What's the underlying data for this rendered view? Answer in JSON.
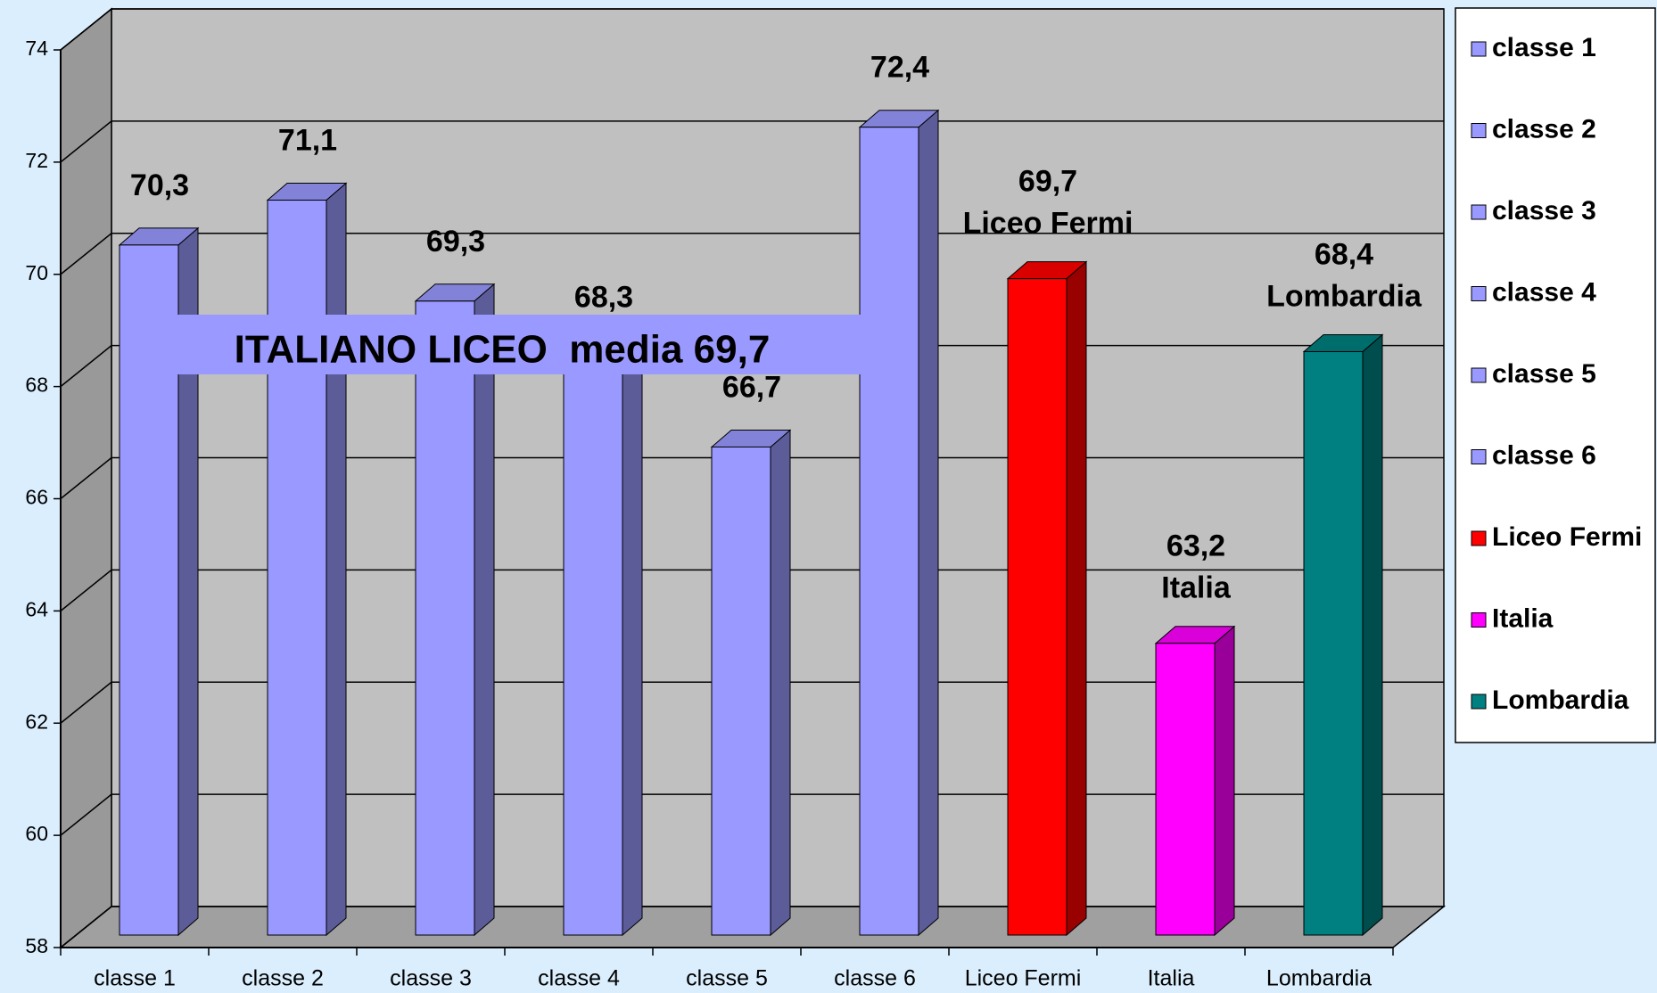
{
  "chart_data": {
    "type": "bar",
    "categories": [
      "classe 1",
      "classe 2",
      "classe 3",
      "classe 4",
      "classe 5",
      "classe 6",
      "Liceo Fermi",
      "Italia",
      "Lombardia"
    ],
    "values": [
      70.3,
      71.1,
      69.3,
      68.3,
      66.7,
      72.4,
      69.7,
      63.2,
      68.4
    ],
    "value_labels": [
      "70,3",
      "71,1",
      "69,3",
      "68,3",
      "66,7",
      "72,4",
      "69,7",
      "63,2",
      "68,4"
    ],
    "label_captions": [
      null,
      null,
      null,
      null,
      null,
      null,
      "Liceo Fermi",
      "Italia",
      "Lombardia"
    ],
    "colors": [
      "#9999ff",
      "#9999ff",
      "#9999ff",
      "#9999ff",
      "#9999ff",
      "#9999ff",
      "#ff0000",
      "#ff00ff",
      "#008080"
    ],
    "annotation": "ITALIANO LICEO  media 69,7",
    "ylim": [
      58,
      74
    ],
    "yticks": [
      58,
      60,
      62,
      64,
      66,
      68,
      70,
      72,
      74
    ],
    "grid": true,
    "legend": "right"
  }
}
